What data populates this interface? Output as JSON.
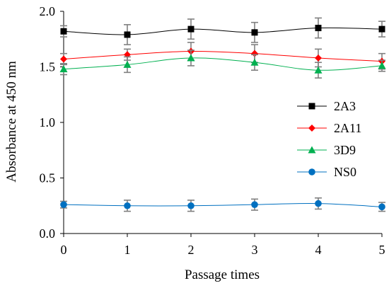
{
  "chart_data": {
    "type": "line",
    "title": "",
    "xlabel": "Passage times",
    "ylabel": "Absorbance at 450 nm",
    "x": [
      0,
      1,
      2,
      3,
      4,
      5
    ],
    "xlim": [
      0,
      5
    ],
    "ylim": [
      0,
      2.0
    ],
    "xticks": [
      "0",
      "1",
      "2",
      "3",
      "4",
      "5"
    ],
    "yticks": [
      "0.0",
      "0.5",
      "1.0",
      "1.5",
      "2.0"
    ],
    "grid": false,
    "legend_position": "right",
    "series": [
      {
        "name": "2A3",
        "color": "#000000",
        "marker": "square",
        "values": [
          1.82,
          1.79,
          1.84,
          1.81,
          1.85,
          1.84
        ],
        "errors": [
          0.05,
          0.09,
          0.09,
          0.09,
          0.09,
          0.07
        ]
      },
      {
        "name": "2A11",
        "color": "#ff0000",
        "marker": "diamond",
        "values": [
          1.57,
          1.61,
          1.64,
          1.62,
          1.58,
          1.55
        ],
        "errors": [
          0.05,
          0.05,
          0.08,
          0.08,
          0.08,
          0.07
        ]
      },
      {
        "name": "3D9",
        "color": "#00b050",
        "marker": "triangle",
        "values": [
          1.48,
          1.52,
          1.58,
          1.54,
          1.47,
          1.51
        ],
        "errors": [
          0.05,
          0.07,
          0.07,
          0.07,
          0.07,
          0.05
        ]
      },
      {
        "name": "NS0",
        "color": "#0070c0",
        "marker": "circle",
        "values": [
          0.26,
          0.25,
          0.25,
          0.26,
          0.27,
          0.24
        ],
        "errors": [
          0.03,
          0.05,
          0.05,
          0.05,
          0.05,
          0.04
        ]
      }
    ]
  }
}
